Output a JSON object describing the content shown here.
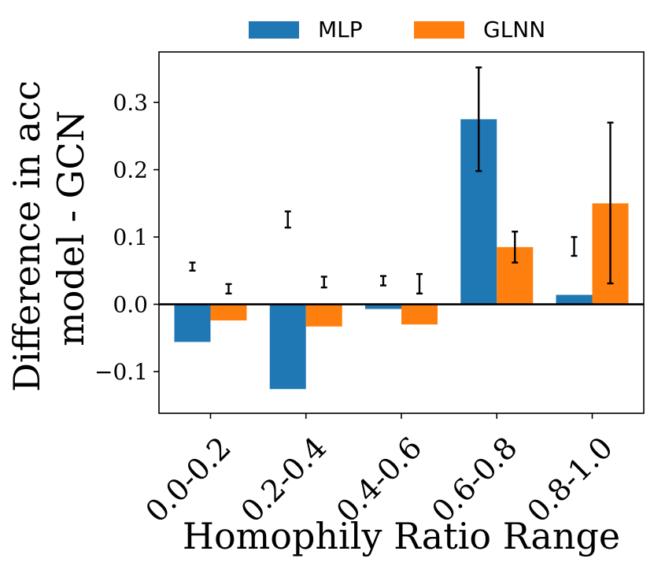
{
  "chart_data": {
    "type": "bar",
    "title": "",
    "xlabel": "Homophily Ratio Range",
    "ylabel_line1": "Difference in acc",
    "ylabel_line2": "model - GCN",
    "categories": [
      "0.0-0.2",
      "0.2-0.4",
      "0.4-0.6",
      "0.6-0.8",
      "0.8-1.0"
    ],
    "series": [
      {
        "name": "MLP",
        "color": "#1f77b4",
        "values": [
          -0.056,
          -0.126,
          -0.007,
          0.275,
          0.014
        ],
        "error_low": [
          0.05,
          0.114,
          0.028,
          0.198,
          0.072
        ],
        "error_high": [
          0.062,
          0.138,
          0.042,
          0.352,
          0.1
        ]
      },
      {
        "name": "GLNN",
        "color": "#ff7f0e",
        "values": [
          -0.024,
          -0.033,
          -0.03,
          0.085,
          0.15
        ],
        "error_low": [
          0.016,
          0.025,
          0.016,
          0.062,
          0.031
        ],
        "error_high": [
          0.03,
          0.041,
          0.045,
          0.108,
          0.27
        ]
      }
    ],
    "ylim": [
      -0.162,
      0.375
    ],
    "yticks": [
      -0.1,
      0.0,
      0.1,
      0.2,
      0.3
    ],
    "ytick_labels": [
      "−0.1",
      "0.0",
      "0.1",
      "0.2",
      "0.3"
    ],
    "zero_line": true,
    "grid": false,
    "legend_position": "top-center-outside"
  }
}
